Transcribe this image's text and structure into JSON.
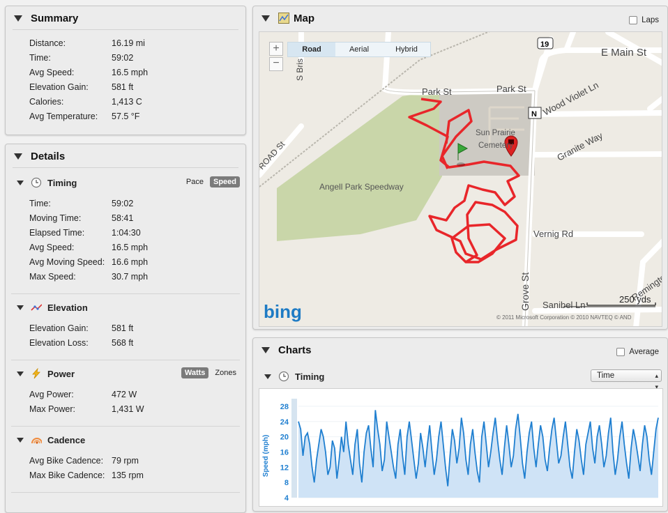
{
  "summary": {
    "title": "Summary",
    "rows": [
      {
        "label": "Distance:",
        "value": "16.19 mi"
      },
      {
        "label": "Time:",
        "value": "59:02"
      },
      {
        "label": "Avg Speed:",
        "value": "16.5 mph"
      },
      {
        "label": "Elevation Gain:",
        "value": "581 ft"
      },
      {
        "label": "Calories:",
        "value": "1,413 C"
      },
      {
        "label": "Avg Temperature:",
        "value": "57.5 °F"
      }
    ]
  },
  "details": {
    "title": "Details",
    "timing": {
      "title": "Timing",
      "toggle": [
        "Pace",
        "Speed"
      ],
      "toggle_selected": "Speed",
      "rows": [
        {
          "label": "Time:",
          "value": "59:02"
        },
        {
          "label": "Moving Time:",
          "value": "58:41"
        },
        {
          "label": "Elapsed Time:",
          "value": "1:04:30"
        },
        {
          "label": "Avg Speed:",
          "value": "16.5 mph"
        },
        {
          "label": "Avg Moving Speed:",
          "value": "16.6 mph"
        },
        {
          "label": "Max Speed:",
          "value": "30.7 mph"
        }
      ]
    },
    "elevation": {
      "title": "Elevation",
      "rows": [
        {
          "label": "Elevation Gain:",
          "value": "581 ft"
        },
        {
          "label": "Elevation Loss:",
          "value": "568 ft"
        }
      ]
    },
    "power": {
      "title": "Power",
      "toggle": [
        "Watts",
        "Zones"
      ],
      "toggle_selected": "Watts",
      "rows": [
        {
          "label": "Avg Power:",
          "value": "472 W"
        },
        {
          "label": "Max Power:",
          "value": "1,431 W"
        }
      ]
    },
    "cadence": {
      "title": "Cadence",
      "rows": [
        {
          "label": "Avg Bike Cadence:",
          "value": "79 rpm"
        },
        {
          "label": "Max Bike Cadence:",
          "value": "135 rpm"
        }
      ]
    }
  },
  "map": {
    "title": "Map",
    "laps_label": "Laps",
    "map_types": [
      "Road",
      "Aerial",
      "Hybrid"
    ],
    "map_type_selected": "Road",
    "labels": {
      "e_main": "E Main St",
      "park1": "Park St",
      "park2": "Park St",
      "wood_violet": "Wood Violet Ln",
      "granite": "Granite Way",
      "vernig": "Vernig Rd",
      "grove": "Grove St",
      "sanibel": "Sanibel Ln",
      "remington": "Remingto",
      "road": "ROAD St",
      "s_bris": "S Bris St",
      "angell": "Angell Park Speedway",
      "sun_prairie": "Sun Prairie",
      "cemetery": "Cemetery",
      "route_shield": "19",
      "n_marker": "N"
    },
    "scale_label": "250 yds",
    "attribution": "© 2011 Microsoft Corporation   © 2010 NAVTEQ   © AND",
    "logo": "bing",
    "colors": {
      "route": "#e8262a",
      "park": "#c9d6a9",
      "cemetery": "#cdcac3"
    }
  },
  "charts": {
    "title": "Charts",
    "average_label": "Average",
    "timing_title": "Timing",
    "select_value": "Time",
    "chart_data": {
      "type": "area",
      "ylabel": "Speed (mph)",
      "ylim": [
        4,
        30
      ],
      "yticks": [
        4,
        8,
        12,
        16,
        20,
        24,
        28
      ],
      "series": [
        {
          "color": "#1f7fd0",
          "values": [
            24,
            22,
            15,
            20,
            21,
            18,
            12,
            8,
            14,
            18,
            22,
            20,
            16,
            10,
            12,
            19,
            17,
            9,
            14,
            20,
            16,
            24,
            18,
            14,
            10,
            18,
            22,
            13,
            8,
            16,
            21,
            23,
            17,
            12,
            27,
            22,
            18,
            11,
            14,
            24,
            20,
            16,
            12,
            9,
            18,
            22,
            15,
            10,
            20,
            24,
            19,
            14,
            9,
            13,
            21,
            17,
            12,
            18,
            23,
            16,
            10,
            14,
            20,
            24,
            18,
            12,
            7,
            15,
            22,
            19,
            13,
            17,
            25,
            21,
            14,
            10,
            18,
            22,
            16,
            11,
            8,
            20,
            24,
            18,
            12,
            16,
            21,
            25,
            19,
            14,
            10,
            17,
            23,
            18,
            12,
            15,
            22,
            26,
            20,
            13,
            9,
            16,
            21,
            24,
            17,
            12,
            18,
            23,
            20,
            14,
            11,
            17,
            22,
            25,
            19,
            13,
            15,
            20,
            24,
            18,
            12,
            9,
            16,
            22,
            19,
            14,
            10,
            18,
            21,
            24,
            17,
            13,
            20,
            23,
            18,
            12,
            15,
            21,
            25,
            16,
            10,
            14,
            20,
            24,
            18,
            13,
            9,
            17,
            22,
            19,
            15,
            11,
            18,
            23,
            20,
            14,
            10,
            16,
            22,
            25
          ]
        }
      ]
    }
  }
}
